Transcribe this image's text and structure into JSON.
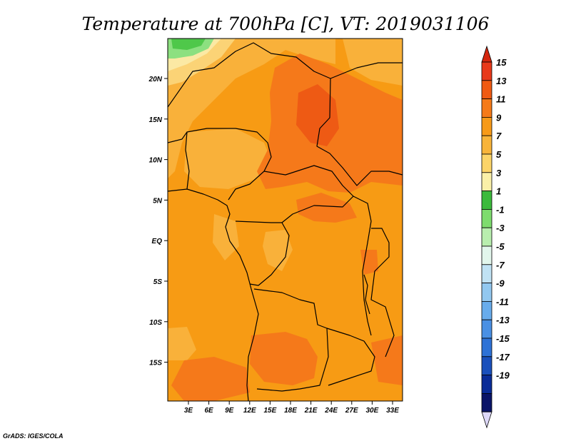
{
  "title": "Temperature at 700hPa [C], VT: 2019031106",
  "credit": "GrADS: IGES/COLA",
  "x_ticks": [
    "3E",
    "6E",
    "9E",
    "12E",
    "15E",
    "18E",
    "21E",
    "24E",
    "27E",
    "30E",
    "33E"
  ],
  "y_ticks": [
    "20N",
    "15N",
    "10N",
    "5N",
    "EQ",
    "5S",
    "10S",
    "15S"
  ],
  "colorbar": {
    "labels": [
      "15",
      "13",
      "11",
      "9",
      "7",
      "5",
      "3",
      "1",
      "-1",
      "-3",
      "-5",
      "-7",
      "-9",
      "-11",
      "-13",
      "-15",
      "-17",
      "-19"
    ],
    "colors_top_to_bottom": [
      "#e8391a",
      "#f05a12",
      "#f57a18",
      "#f79a18",
      "#f8b43a",
      "#fcd468",
      "#faf0a8",
      "#3cba3c",
      "#7edc6e",
      "#b8eeae",
      "#e2f6ec",
      "#c0e2f4",
      "#92c8f0",
      "#68acec",
      "#4a90e4",
      "#2e72d6",
      "#1a50bc",
      "#0a2c98",
      "#0a1468"
    ],
    "over_color": "#d4260e",
    "under_color": "#ddd8f8"
  },
  "map": {
    "region": "Central Africa",
    "lon_range": [
      0,
      35
    ],
    "lat_range": [
      -20,
      24
    ],
    "palette": {
      "base": "#f79b14",
      "light": "#f9b13a",
      "warm": "#f5791a",
      "hot": "#ee5a14",
      "pale": "#fbd376",
      "cream": "#fbe9a4",
      "green_dark": "#4fc84a",
      "green_light": "#8ce080"
    }
  }
}
